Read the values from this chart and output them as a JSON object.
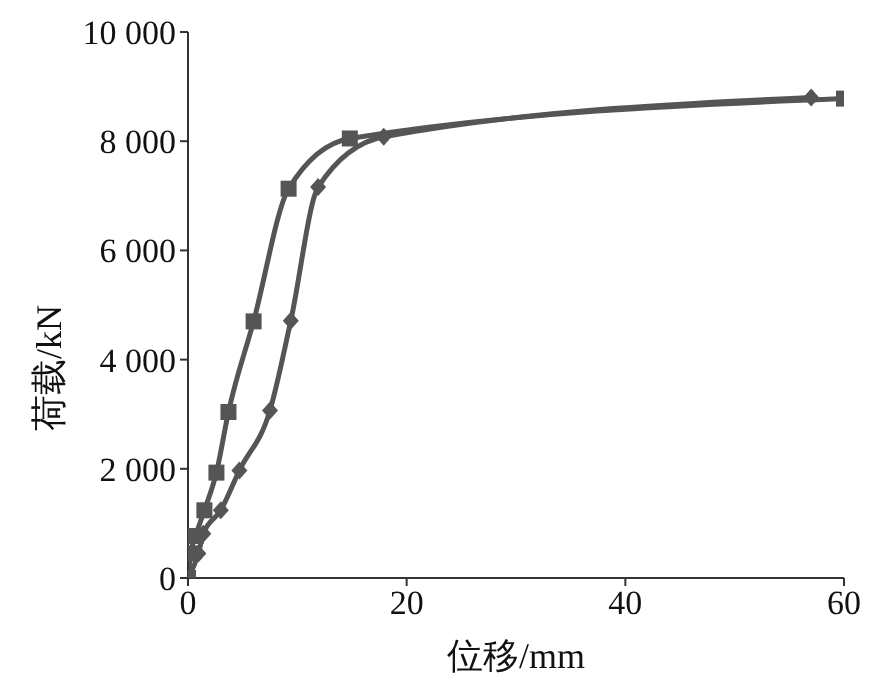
{
  "chart_data": {
    "type": "line",
    "xlabel": "位移/mm",
    "ylabel": "荷载/kN",
    "xlim": [
      0,
      60
    ],
    "xticks": [
      0,
      20,
      40,
      60
    ],
    "ylim": [
      0,
      10000
    ],
    "yticks": [
      0,
      {
        "value": 2000,
        "label": "2 000"
      },
      {
        "value": 4000,
        "label": "4 000"
      },
      {
        "value": 6000,
        "label": "6 000"
      },
      {
        "value": 8000,
        "label": "8 000"
      },
      {
        "value": 10000,
        "label": "10 000"
      }
    ],
    "line_style": "solid",
    "series": [
      {
        "color": "#555555",
        "marker": "square",
        "x": [
          0,
          0.25,
          0.7,
          1.5,
          2.6,
          3.7,
          6.0,
          9.2,
          14.8,
          60
        ],
        "values": [
          0,
          450,
          770,
          1240,
          1930,
          3040,
          4700,
          7130,
          8050,
          8780
        ]
      },
      {
        "color": "#555555",
        "marker": "diamond",
        "x": [
          0,
          0.95,
          1.4,
          3.0,
          4.7,
          7.5,
          9.4,
          11.9,
          17.9,
          57
        ],
        "values": [
          0,
          450,
          810,
          1240,
          1970,
          3070,
          4710,
          7160,
          8080,
          8800
        ]
      }
    ]
  }
}
